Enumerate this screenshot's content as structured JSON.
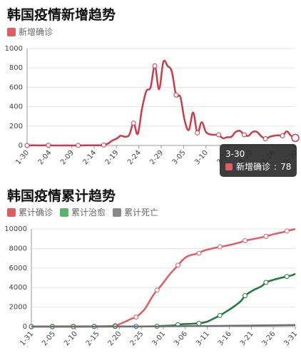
{
  "charts": [
    {
      "title": "韩国疫情新增趋势",
      "legend": [
        {
          "label": "新增确诊",
          "color": "#e05c64"
        }
      ],
      "tooltip": {
        "date": "3-30",
        "series": "新增确诊",
        "sep": ":",
        "value": "78"
      }
    },
    {
      "title": "韩国疫情累计趋势",
      "legend": [
        {
          "label": "累计确诊",
          "color": "#e05c64"
        },
        {
          "label": "累计治愈",
          "color": "#59b46e"
        },
        {
          "label": "累计死亡",
          "color": "#888888"
        }
      ]
    }
  ],
  "chart_data": [
    {
      "type": "line",
      "title": "韩国疫情新增趋势",
      "x": [
        "1-30",
        "2-04",
        "2-09",
        "2-14",
        "2-19",
        "2-24",
        "2-29",
        "3-05",
        "3-10",
        "3-15",
        "3-20",
        "3-26",
        "3-30"
      ],
      "ylim": [
        0,
        1000
      ],
      "yticks": [
        0,
        200,
        400,
        600,
        800,
        1000
      ],
      "series": [
        {
          "name": "新增确诊",
          "color": "#cc3b4a",
          "points": [
            [
              0,
              0
            ],
            [
              1,
              2
            ],
            [
              3,
              1
            ],
            [
              5,
              2
            ],
            [
              7,
              0
            ],
            [
              9,
              1
            ],
            [
              11,
              0
            ],
            [
              13,
              1
            ],
            [
              15,
              2
            ],
            [
              17,
              2
            ],
            [
              18,
              5
            ],
            [
              19,
              20
            ],
            [
              20,
              50
            ],
            [
              21,
              70
            ],
            [
              22,
              100
            ],
            [
              23,
              90
            ],
            [
              24,
              110
            ],
            [
              25,
              230
            ],
            [
              26,
              120
            ],
            [
              27,
              380
            ],
            [
              28,
              560
            ],
            [
              29,
              600
            ],
            [
              30,
              820
            ],
            [
              31,
              580
            ],
            [
              32,
              860
            ],
            [
              33,
              820
            ],
            [
              34,
              760
            ],
            [
              35,
              520
            ],
            [
              36,
              500
            ],
            [
              37,
              260
            ],
            [
              38,
              160
            ],
            [
              39,
              340
            ],
            [
              40,
              130
            ],
            [
              41,
              240
            ],
            [
              42,
              140
            ],
            [
              43,
              115
            ],
            [
              44,
              110
            ],
            [
              45,
              110
            ],
            [
              46,
              75
            ],
            [
              47,
              85
            ],
            [
              48,
              90
            ],
            [
              49,
              140
            ],
            [
              50,
              150
            ],
            [
              51,
              110
            ],
            [
              52,
              100
            ],
            [
              53,
              140
            ],
            [
              54,
              140
            ],
            [
              55,
              95
            ],
            [
              56,
              70
            ],
            [
              57,
              90
            ],
            [
              58,
              100
            ],
            [
              59,
              105
            ],
            [
              60,
              100
            ],
            [
              61,
              145
            ],
            [
              62,
              100
            ],
            [
              63,
              78
            ]
          ],
          "markers": [
            0,
            5,
            12,
            18,
            25,
            30,
            35,
            40,
            45,
            51,
            56,
            60,
            63
          ]
        }
      ]
    },
    {
      "type": "line",
      "title": "韩国疫情累计趋势",
      "x": [
        "1-31",
        "2-05",
        "2-10",
        "2-15",
        "2-20",
        "2-25",
        "3-01",
        "3-06",
        "3-11",
        "3-16",
        "3-21",
        "3-26",
        "3-31"
      ],
      "ylim": [
        0,
        10000
      ],
      "yticks": [
        0,
        2000,
        4000,
        6000,
        8000,
        10000
      ],
      "series": [
        {
          "name": "累计确诊",
          "color": "#e05c64",
          "points": [
            [
              0,
              11
            ],
            [
              5,
              23
            ],
            [
              10,
              28
            ],
            [
              15,
              29
            ],
            [
              18,
              46
            ],
            [
              20,
              104
            ],
            [
              22,
              433
            ],
            [
              24,
              833
            ],
            [
              25,
              977
            ],
            [
              27,
              1766
            ],
            [
              29,
              3150
            ],
            [
              30,
              3736
            ],
            [
              31,
              4212
            ],
            [
              33,
              5328
            ],
            [
              35,
              6284
            ],
            [
              36,
              6767
            ],
            [
              37,
              7134
            ],
            [
              38,
              7313
            ],
            [
              40,
              7513
            ],
            [
              41,
              7755
            ],
            [
              43,
              7979
            ],
            [
              45,
              8162
            ],
            [
              46,
              8236
            ],
            [
              48,
              8413
            ],
            [
              50,
              8652
            ],
            [
              51,
              8799
            ],
            [
              53,
              8961
            ],
            [
              55,
              9137
            ],
            [
              56,
              9241
            ],
            [
              58,
              9478
            ],
            [
              60,
              9661
            ],
            [
              61,
              9786
            ],
            [
              62,
              9887
            ],
            [
              63,
              9976
            ]
          ],
          "markers": [
            0,
            5,
            10,
            15,
            20,
            25,
            30,
            35,
            40,
            45,
            51,
            56,
            61
          ]
        },
        {
          "name": "累计治愈",
          "color": "#1e7a3e",
          "points": [
            [
              0,
              0
            ],
            [
              10,
              3
            ],
            [
              20,
              16
            ],
            [
              25,
              22
            ],
            [
              28,
              27
            ],
            [
              30,
              41
            ],
            [
              32,
              88
            ],
            [
              34,
              135
            ],
            [
              36,
              247
            ],
            [
              38,
              288
            ],
            [
              40,
              333
            ],
            [
              42,
              510
            ],
            [
              43,
              714
            ],
            [
              45,
              1137
            ],
            [
              46,
              1401
            ],
            [
              48,
              1947
            ],
            [
              50,
              2612
            ],
            [
              51,
              3166
            ],
            [
              53,
              3730
            ],
            [
              55,
              4144
            ],
            [
              56,
              4528
            ],
            [
              58,
              4811
            ],
            [
              60,
              5033
            ],
            [
              62,
              5228
            ],
            [
              63,
              5408
            ]
          ],
          "markers": [
            0,
            5,
            10,
            15,
            20,
            25,
            30,
            35,
            40,
            45,
            51,
            56,
            61
          ]
        },
        {
          "name": "累计死亡",
          "color": "#707070",
          "points": [
            [
              0,
              0
            ],
            [
              20,
              1
            ],
            [
              25,
              10
            ],
            [
              30,
              22
            ],
            [
              35,
              42
            ],
            [
              40,
              60
            ],
            [
              45,
              75
            ],
            [
              50,
              102
            ],
            [
              55,
              126
            ],
            [
              60,
              144
            ],
            [
              63,
              162
            ]
          ],
          "markers": []
        }
      ]
    }
  ]
}
